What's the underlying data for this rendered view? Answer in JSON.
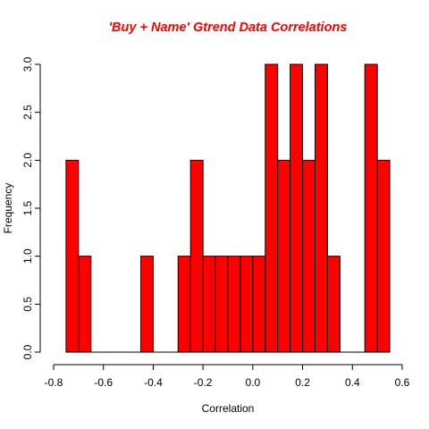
{
  "chart_data": {
    "type": "bar",
    "title": "'Buy + Name' Gtrend Data Correlations",
    "xlabel": "Correlation",
    "ylabel": "Frequency",
    "bar_color": "#ff0000",
    "bin_width": 0.05,
    "bins": [
      {
        "x0": -0.75,
        "x1": -0.7,
        "count": 2
      },
      {
        "x0": -0.7,
        "x1": -0.65,
        "count": 1
      },
      {
        "x0": -0.65,
        "x1": -0.6,
        "count": 0
      },
      {
        "x0": -0.6,
        "x1": -0.55,
        "count": 0
      },
      {
        "x0": -0.55,
        "x1": -0.5,
        "count": 0
      },
      {
        "x0": -0.5,
        "x1": -0.45,
        "count": 0
      },
      {
        "x0": -0.45,
        "x1": -0.4,
        "count": 1
      },
      {
        "x0": -0.4,
        "x1": -0.35,
        "count": 0
      },
      {
        "x0": -0.35,
        "x1": -0.3,
        "count": 0
      },
      {
        "x0": -0.3,
        "x1": -0.25,
        "count": 1
      },
      {
        "x0": -0.25,
        "x1": -0.2,
        "count": 2
      },
      {
        "x0": -0.2,
        "x1": -0.15,
        "count": 1
      },
      {
        "x0": -0.15,
        "x1": -0.1,
        "count": 1
      },
      {
        "x0": -0.1,
        "x1": -0.05,
        "count": 1
      },
      {
        "x0": -0.05,
        "x1": 0.0,
        "count": 1
      },
      {
        "x0": 0.0,
        "x1": 0.05,
        "count": 1
      },
      {
        "x0": 0.05,
        "x1": 0.1,
        "count": 3
      },
      {
        "x0": 0.1,
        "x1": 0.15,
        "count": 2
      },
      {
        "x0": 0.15,
        "x1": 0.2,
        "count": 3
      },
      {
        "x0": 0.2,
        "x1": 0.25,
        "count": 2
      },
      {
        "x0": 0.25,
        "x1": 0.3,
        "count": 3
      },
      {
        "x0": 0.3,
        "x1": 0.35,
        "count": 1
      },
      {
        "x0": 0.35,
        "x1": 0.4,
        "count": 0
      },
      {
        "x0": 0.4,
        "x1": 0.45,
        "count": 0
      },
      {
        "x0": 0.45,
        "x1": 0.5,
        "count": 3
      },
      {
        "x0": 0.5,
        "x1": 0.55,
        "count": 2
      }
    ],
    "xlim": [
      -0.8,
      0.6
    ],
    "ylim": [
      0,
      3
    ],
    "xticks": [
      -0.8,
      -0.6,
      -0.4,
      -0.2,
      0.0,
      0.2,
      0.4,
      0.6
    ],
    "xtick_labels": [
      "-0.8",
      "-0.6",
      "-0.4",
      "-0.2",
      "0.0",
      "0.2",
      "0.4",
      "0.6"
    ],
    "yticks": [
      0,
      0.5,
      1,
      1.5,
      2,
      2.5,
      3
    ],
    "ytick_labels": [
      "0.0",
      "0.5",
      "1.0",
      "1.5",
      "2.0",
      "2.5",
      "3.0"
    ],
    "grid": false,
    "legend": "none"
  }
}
